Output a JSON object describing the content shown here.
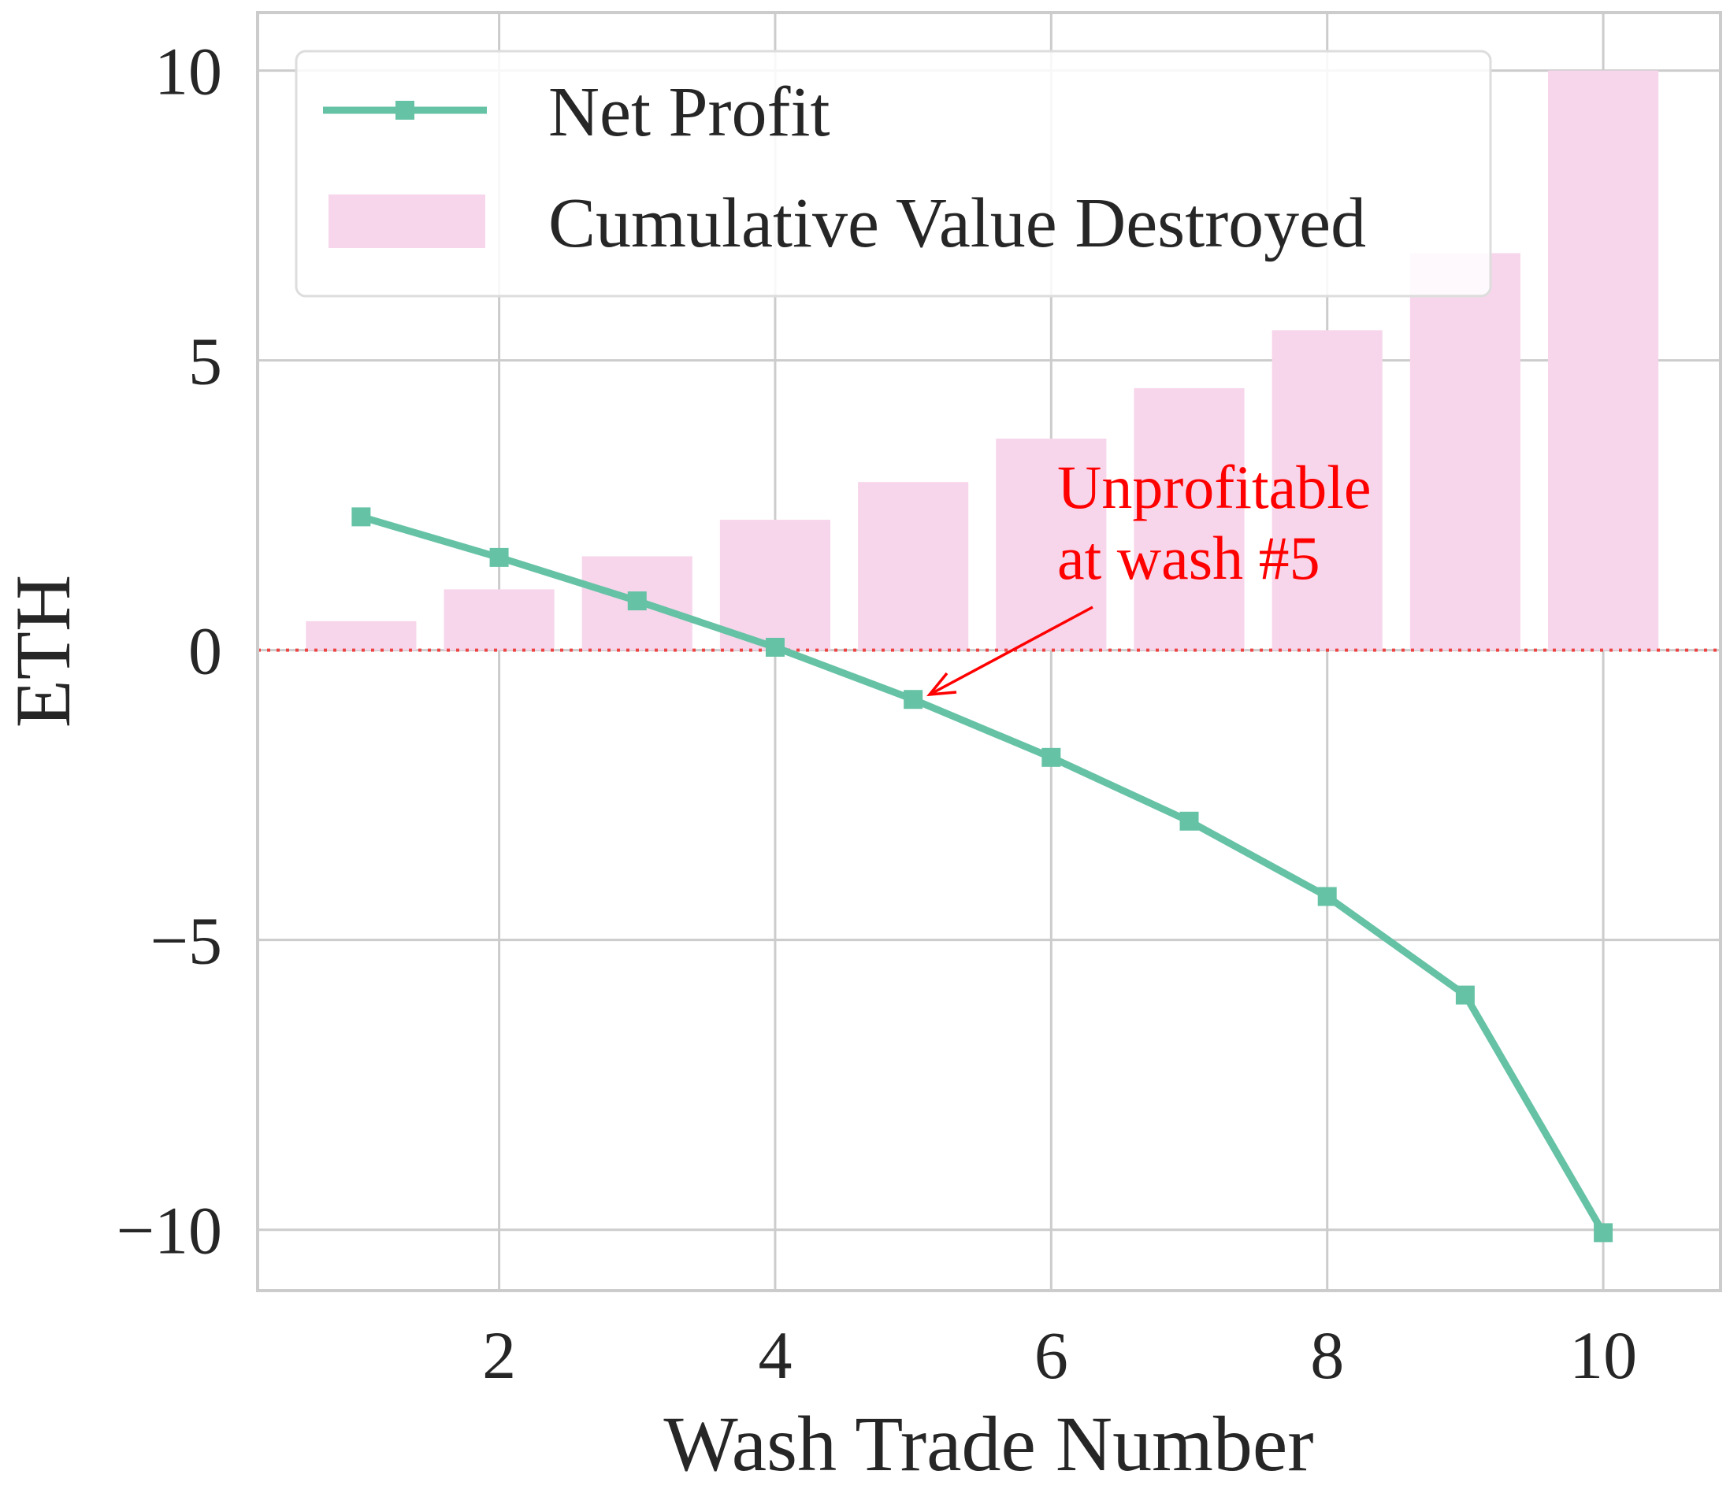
{
  "chart_data": {
    "type": "bar",
    "xlabel": "Wash Trade Number",
    "ylabel": "ETH",
    "xlim": [
      0.25,
      10.85
    ],
    "ylim": [
      -11.05,
      11.0
    ],
    "xticks": [
      "2",
      "4",
      "6",
      "8",
      "10"
    ],
    "yticks": [
      "10",
      "5",
      "0",
      "−5",
      "−10"
    ],
    "grid": true,
    "legend": "top-left",
    "x": [
      1,
      2,
      3,
      4,
      5,
      6,
      7,
      8,
      9,
      10
    ],
    "series": [
      {
        "name": "Net Profit",
        "kind": "line",
        "marker": "square",
        "color": "#66c2a5",
        "values": [
          2.3,
          1.6,
          0.85,
          0.05,
          -0.85,
          -1.85,
          -2.95,
          -4.25,
          -5.95,
          -10.05
        ]
      },
      {
        "name": "Cumulative Value Destroyed",
        "kind": "bar",
        "color": "#f7d6eb",
        "values": [
          0.5,
          1.05,
          1.62,
          2.25,
          2.9,
          3.65,
          4.52,
          5.52,
          6.85,
          10.0
        ]
      }
    ],
    "reference_line": {
      "y": 0,
      "style": "dotted",
      "color": "#ee4444"
    },
    "annotation": {
      "lines": [
        "Unprofitable",
        "at wash #5"
      ],
      "color": "#ff0000",
      "target": {
        "x": 5,
        "y": -0.85
      },
      "text_anchor": {
        "x": 5.05,
        "y": 2.85
      }
    }
  }
}
